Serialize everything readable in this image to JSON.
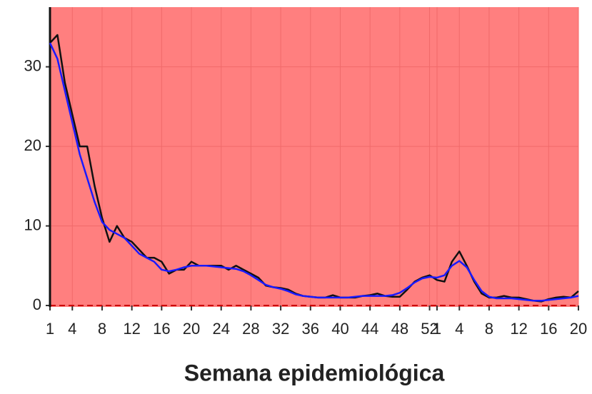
{
  "chart_data": {
    "type": "line",
    "x_label": "Semana epidemiológica",
    "x": [
      1,
      2,
      3,
      4,
      5,
      6,
      7,
      8,
      9,
      10,
      11,
      12,
      13,
      14,
      15,
      16,
      17,
      18,
      19,
      20,
      21,
      22,
      23,
      24,
      25,
      26,
      27,
      28,
      29,
      30,
      31,
      32,
      33,
      34,
      35,
      36,
      37,
      38,
      39,
      40,
      41,
      42,
      43,
      44,
      45,
      46,
      47,
      48,
      49,
      50,
      51,
      52,
      53,
      54,
      55,
      56,
      57,
      58,
      59,
      60,
      61,
      62,
      63,
      64,
      65,
      66,
      67,
      68,
      69,
      70,
      71,
      72
    ],
    "series": [
      {
        "color": "#111111",
        "values": [
          33,
          34,
          28,
          24,
          20,
          20,
          15,
          11,
          8,
          10,
          8.5,
          8,
          7,
          6,
          6,
          5.5,
          4,
          4.5,
          4.5,
          5.5,
          5,
          5,
          5,
          5,
          4.5,
          5,
          4.5,
          4,
          3.5,
          2.5,
          2.3,
          2.2,
          2,
          1.5,
          1.2,
          1.1,
          1,
          1,
          1.3,
          1,
          1,
          1,
          1.2,
          1.3,
          1.5,
          1.2,
          1.1,
          1.1,
          2,
          3,
          3.5,
          3.8,
          3.2,
          3,
          5.5,
          6.8,
          5,
          3,
          1.5,
          1,
          1,
          1.2,
          1,
          1,
          0.8,
          0.6,
          0.5,
          0.8,
          1,
          1.1,
          1,
          1.8
        ]
      },
      {
        "color": "#1a1aff",
        "values": [
          33,
          31,
          27,
          23,
          19,
          16,
          13,
          10.5,
          9.5,
          9,
          8.5,
          7.5,
          6.5,
          6,
          5.5,
          4.5,
          4.3,
          4.5,
          4.8,
          5,
          5,
          5,
          4.9,
          4.8,
          4.7,
          4.6,
          4.3,
          3.8,
          3.2,
          2.6,
          2.3,
          2.1,
          1.8,
          1.4,
          1.2,
          1.1,
          1,
          1,
          1,
          1,
          1,
          1.1,
          1.2,
          1.2,
          1.2,
          1.2,
          1.3,
          1.6,
          2.2,
          2.9,
          3.4,
          3.6,
          3.5,
          3.8,
          5,
          5.6,
          4.8,
          3.2,
          1.8,
          1.1,
          0.9,
          0.9,
          0.9,
          0.8,
          0.7,
          0.6,
          0.6,
          0.7,
          0.8,
          0.9,
          1,
          1.2
        ]
      }
    ],
    "xlim": [
      1,
      72
    ],
    "ylim": [
      0,
      37.5
    ],
    "yticks": [
      0,
      10,
      20,
      30
    ],
    "xticks": [
      1,
      4,
      8,
      12,
      16,
      20,
      24,
      28,
      32,
      36,
      40,
      44,
      48,
      52,
      {
        "value": 53,
        "label": "1"
      },
      {
        "value": 56,
        "label": "4"
      },
      {
        "value": 60,
        "label": "8"
      },
      {
        "value": 64,
        "label": "12"
      },
      {
        "value": 68,
        "label": "16"
      },
      {
        "value": 72,
        "label": "20"
      }
    ],
    "background": "#ff7f7f",
    "grid": true,
    "threshold_color": "#cc0000"
  }
}
